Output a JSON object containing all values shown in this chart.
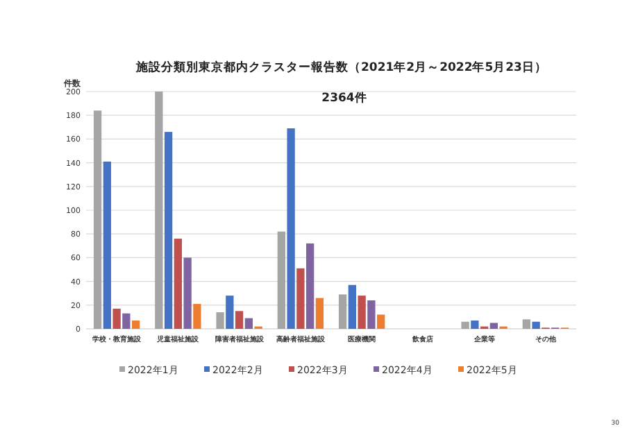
{
  "chart_data": {
    "type": "bar",
    "title": "施設分類別東京都内クラスター報告数（2021年2月～2022年5月23日）",
    "subtitle": "2364件",
    "ylabel": "件数",
    "categories": [
      "学校・教育施設",
      "児童福祉施設",
      "障害者福祉施設",
      "高齢者福祉施設",
      "医療機関",
      "飲食店",
      "企業等",
      "その他"
    ],
    "series": [
      {
        "name": "2022年1月",
        "color": "#a5a5a5",
        "values": [
          184,
          200,
          14,
          82,
          29,
          0,
          6,
          8
        ]
      },
      {
        "name": "2022年2月",
        "color": "#4472c4",
        "values": [
          141,
          166,
          28,
          169,
          37,
          0,
          7,
          6
        ]
      },
      {
        "name": "2022年3月",
        "color": "#c0504d",
        "values": [
          17,
          76,
          15,
          51,
          28,
          0,
          2,
          1
        ]
      },
      {
        "name": "2022年4月",
        "color": "#8064a2",
        "values": [
          13,
          60,
          9,
          72,
          24,
          0,
          5,
          1
        ]
      },
      {
        "name": "2022年5月",
        "color": "#ed7d31",
        "values": [
          7,
          21,
          2,
          26,
          12,
          0,
          2,
          1
        ]
      }
    ],
    "ylim": [
      0,
      200
    ],
    "yticks": [
      0,
      20,
      40,
      60,
      80,
      100,
      120,
      140,
      160,
      180,
      200
    ],
    "grid": "y",
    "legend": "bottom",
    "annotations": [
      "30"
    ]
  }
}
